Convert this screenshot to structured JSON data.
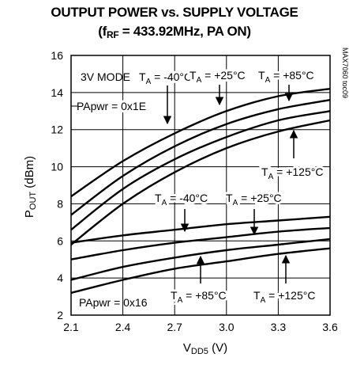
{
  "chart_data": {
    "type": "line",
    "title_line1": "OUTPUT POWER vs. SUPPLY VOLTAGE",
    "title_line2_prefix": "(f",
    "title_line2_sub": "RF",
    "title_line2_suffix": " = 433.92MHz, PA ON)",
    "xlabel_main": "V",
    "xlabel_sub": "DD5",
    "xlabel_suffix": " (V)",
    "ylabel_main": "P",
    "ylabel_sub": "OUT",
    "ylabel_suffix": " (dBm)",
    "figure_id": "MAX7060 toc09",
    "xlim": [
      2.1,
      3.6
    ],
    "ylim": [
      2,
      16
    ],
    "xticks": [
      "2.1",
      "2.4",
      "2.7",
      "3.0",
      "3.3",
      "3.6"
    ],
    "yticks": [
      "2",
      "4",
      "6",
      "8",
      "10",
      "12",
      "14",
      "16"
    ],
    "grid": true,
    "annotations": {
      "mode": "3V MODE",
      "pa_high": "PApwr = 0x1E",
      "pa_low": "PApwr = 0x16",
      "ta_prefix": "T",
      "ta_sub": "A",
      "temp_m40": " = -40°C",
      "temp_25": " = +25°C",
      "temp_85": " = +85°C",
      "temp_125": " = +125°C"
    },
    "x": [
      2.1,
      2.4,
      2.7,
      3.0,
      3.3,
      3.6
    ],
    "series": [
      {
        "group": "PApwr = 0x1E",
        "values": [
          8.4,
          10.3,
          11.8,
          13.0,
          13.8,
          14.2
        ]
      },
      {
        "group": "PApwr = 0x1E",
        "values": [
          7.4,
          9.5,
          11.1,
          12.3,
          13.1,
          13.6
        ]
      },
      {
        "group": "PApwr = 0x1E",
        "values": [
          6.6,
          8.8,
          10.4,
          11.6,
          12.5,
          13.0
        ]
      },
      {
        "group": "PApwr = 0x1E",
        "values": [
          5.8,
          8.0,
          9.7,
          11.0,
          11.9,
          12.5
        ]
      },
      {
        "group": "PApwr = 0x16",
        "values": [
          5.9,
          6.3,
          6.6,
          6.9,
          7.1,
          7.3
        ]
      },
      {
        "group": "PApwr = 0x16",
        "values": [
          5.0,
          5.5,
          5.9,
          6.2,
          6.5,
          6.7
        ]
      },
      {
        "group": "PApwr = 0x16",
        "values": [
          3.9,
          4.6,
          5.1,
          5.5,
          5.8,
          6.1
        ]
      },
      {
        "group": "PApwr = 0x16",
        "values": [
          3.2,
          3.9,
          4.5,
          4.9,
          5.3,
          5.6
        ]
      }
    ]
  }
}
